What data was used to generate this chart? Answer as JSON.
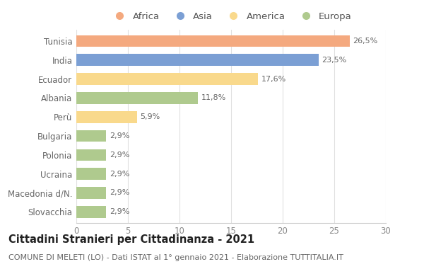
{
  "categories": [
    "Tunisia",
    "India",
    "Ecuador",
    "Albania",
    "Perù",
    "Bulgaria",
    "Polonia",
    "Ucraina",
    "Macedonia d/N.",
    "Slovacchia"
  ],
  "values": [
    26.5,
    23.5,
    17.6,
    11.8,
    5.9,
    2.9,
    2.9,
    2.9,
    2.9,
    2.9
  ],
  "colors": [
    "#F4A97F",
    "#7B9FD4",
    "#F9D98C",
    "#AFCA8E",
    "#F9D98C",
    "#AFCA8E",
    "#AFCA8E",
    "#AFCA8E",
    "#AFCA8E",
    "#AFCA8E"
  ],
  "labels": [
    "26,5%",
    "23,5%",
    "17,6%",
    "11,8%",
    "5,9%",
    "2,9%",
    "2,9%",
    "2,9%",
    "2,9%",
    "2,9%"
  ],
  "legend_labels": [
    "Africa",
    "Asia",
    "America",
    "Europa"
  ],
  "legend_colors": [
    "#F4A97F",
    "#7B9FD4",
    "#F9D98C",
    "#AFCA8E"
  ],
  "title": "Cittadini Stranieri per Cittadinanza - 2021",
  "subtitle": "COMUNE DI MELETI (LO) - Dati ISTAT al 1° gennaio 2021 - Elaborazione TUTTITALIA.IT",
  "xlim": [
    0,
    30
  ],
  "xticks": [
    0,
    5,
    10,
    15,
    20,
    25,
    30
  ],
  "background_color": "#ffffff",
  "bar_height": 0.62,
  "title_fontsize": 10.5,
  "subtitle_fontsize": 8,
  "label_fontsize": 8,
  "tick_fontsize": 8.5,
  "legend_fontsize": 9.5
}
